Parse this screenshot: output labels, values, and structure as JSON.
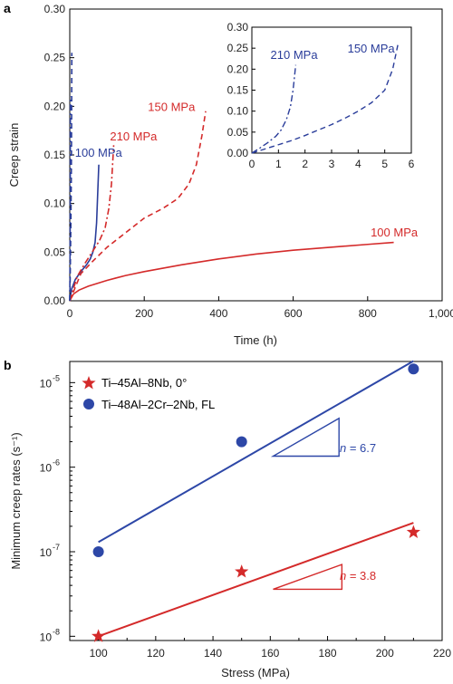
{
  "colors": {
    "red": "#d42a2a",
    "blue": "#2a3d9a",
    "point_blue": "#2d47a7",
    "axis": "#000000"
  },
  "chart_data": [
    {
      "panel_label": "a",
      "type": "line",
      "xlabel": "Time (h)",
      "ylabel": "Creep strain",
      "xlim": [
        0,
        1000
      ],
      "ylim": [
        0,
        0.3
      ],
      "xticks": [
        "0",
        "200",
        "400",
        "600",
        "800",
        "1,000"
      ],
      "yticks": [
        "0.00",
        "0.05",
        "0.10",
        "0.15",
        "0.20",
        "0.25",
        "0.30"
      ],
      "grid": false,
      "series": [
        {
          "name": "100 MPa",
          "color": "blue",
          "style": "solid",
          "x": [
            0,
            5,
            15,
            30,
            45,
            55,
            62,
            68,
            72,
            75,
            78
          ],
          "y": [
            0,
            0.012,
            0.022,
            0.03,
            0.037,
            0.043,
            0.05,
            0.06,
            0.08,
            0.11,
            0.14
          ]
        },
        {
          "name": "210 MPa",
          "color": "red",
          "style": "dashdot",
          "x": [
            0,
            20,
            40,
            60,
            80,
            95,
            105,
            112,
            118
          ],
          "y": [
            0,
            0.025,
            0.038,
            0.05,
            0.062,
            0.075,
            0.095,
            0.12,
            0.16
          ]
        },
        {
          "name": "150 MPa",
          "color": "red",
          "style": "dashed",
          "x": [
            0,
            30,
            60,
            100,
            150,
            200,
            250,
            290,
            320,
            340,
            355,
            365
          ],
          "y": [
            0,
            0.028,
            0.04,
            0.055,
            0.07,
            0.085,
            0.095,
            0.105,
            0.12,
            0.14,
            0.17,
            0.195
          ]
        },
        {
          "name": "100 MPa",
          "color": "red",
          "style": "solid",
          "x": [
            0,
            10,
            25,
            50,
            100,
            150,
            200,
            300,
            400,
            500,
            600,
            700,
            800,
            870
          ],
          "y": [
            0,
            0.007,
            0.011,
            0.015,
            0.021,
            0.026,
            0.03,
            0.037,
            0.043,
            0.048,
            0.052,
            0.055,
            0.058,
            0.06
          ]
        },
        {
          "name": "150 MPa",
          "color": "blue",
          "style": "dashed",
          "x": [
            0,
            1,
            2,
            3,
            4,
            4.5,
            5,
            5.5
          ],
          "y": [
            0,
            0.02,
            0.05,
            0.08,
            0.12,
            0.15,
            0.19,
            0.255
          ]
        },
        {
          "name": "210 MPa",
          "color": "blue",
          "style": "dashdot",
          "x": [
            0,
            0.5,
            1,
            1.2,
            1.4,
            1.5,
            1.6
          ],
          "y": [
            0,
            0.03,
            0.065,
            0.09,
            0.13,
            0.17,
            0.21
          ]
        }
      ],
      "annotations": [
        {
          "text": "150 MPa",
          "color": "red",
          "x": 210,
          "y": 0.195
        },
        {
          "text": "210 MPa",
          "color": "red",
          "x": 108,
          "y": 0.165
        },
        {
          "text": "100 MPa",
          "color": "blue",
          "x": 14,
          "y": 0.148
        },
        {
          "text": "100 MPa",
          "color": "red",
          "x": 808,
          "y": 0.066
        }
      ],
      "inset": {
        "xlim": [
          0,
          6
        ],
        "ylim": [
          0,
          0.3
        ],
        "xticks": [
          "0",
          "1",
          "2",
          "3",
          "4",
          "5",
          "6"
        ],
        "yticks": [
          "0.00",
          "0.05",
          "0.10",
          "0.15",
          "0.20",
          "0.25",
          "0.30"
        ],
        "series": [
          {
            "name": "210 MPa",
            "color": "blue",
            "style": "dashdot",
            "x": [
              0,
              0.3,
              0.6,
              0.9,
              1.1,
              1.3,
              1.45,
              1.55,
              1.65
            ],
            "y": [
              0,
              0.012,
              0.025,
              0.04,
              0.055,
              0.08,
              0.11,
              0.15,
              0.21
            ]
          },
          {
            "name": "150 MPa",
            "color": "blue",
            "style": "dashed",
            "x": [
              0,
              0.5,
              1,
              1.5,
              2,
              2.5,
              3,
              3.5,
              4,
              4.5,
              5,
              5.3,
              5.5
            ],
            "y": [
              0,
              0.01,
              0.02,
              0.03,
              0.042,
              0.055,
              0.068,
              0.083,
              0.1,
              0.12,
              0.15,
              0.2,
              0.26
            ]
          }
        ],
        "annotations": [
          {
            "text": "210 MPa",
            "color": "blue",
            "x": 0.7,
            "y": 0.225
          },
          {
            "text": "150 MPa",
            "color": "blue",
            "x": 3.6,
            "y": 0.24
          }
        ]
      }
    },
    {
      "panel_label": "b",
      "type": "scatter",
      "xlabel": "Stress (MPa)",
      "ylabel": "Minimum creep rates (s⁻¹)",
      "xlim": [
        90,
        220
      ],
      "ylim_log10": [
        -8.05,
        -4.75
      ],
      "xticks": [
        "100",
        "120",
        "140",
        "160",
        "180",
        "200",
        "220"
      ],
      "yticks": [
        "10",
        "10",
        "10",
        "10"
      ],
      "ytick_exponents": [
        "-8",
        "-7",
        "-6",
        "-5"
      ],
      "legend_position": "top-left",
      "series": [
        {
          "name": "Ti–45Al–8Nb, 0°",
          "marker": "star",
          "color": "red",
          "x": [
            100,
            150,
            210
          ],
          "y": [
            1e-08,
            5.8e-08,
            1.7e-07
          ],
          "fit": {
            "x": [
              100,
              210
            ],
            "y": [
              1e-08,
              2.2e-07
            ]
          }
        },
        {
          "name": "Ti–48Al–2Cr–2Nb, FL",
          "marker": "circle",
          "color": "point_blue",
          "x": [
            100,
            150,
            210
          ],
          "y": [
            1e-07,
            2e-06,
            1.45e-05
          ],
          "fit": {
            "x": [
              100,
              210
            ],
            "y": [
              1.3e-07,
              1.8e-05
            ]
          }
        }
      ],
      "slope_labels": [
        {
          "text_pre": "n",
          "text_post": " = 6.7",
          "color": "point_blue"
        },
        {
          "text_pre": "n",
          "text_post": " = 3.8",
          "color": "red"
        }
      ]
    }
  ]
}
